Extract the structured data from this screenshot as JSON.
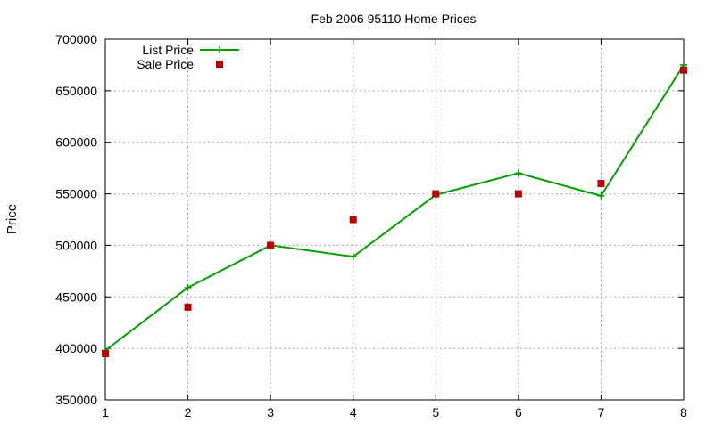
{
  "chart_data": {
    "type": "line",
    "title": "Feb 2006 95110 Home Prices",
    "xlabel": "",
    "ylabel": "Price",
    "xlim": [
      1,
      8
    ],
    "ylim": [
      350000,
      700000
    ],
    "x_ticks": [
      1,
      2,
      3,
      4,
      5,
      6,
      7,
      8
    ],
    "y_ticks": [
      350000,
      400000,
      450000,
      500000,
      550000,
      600000,
      650000,
      700000
    ],
    "grid": true,
    "legend_position": "top-left",
    "series": [
      {
        "name": "List Price",
        "style": "line-with-plus-markers",
        "color": "#00a000",
        "x": [
          1,
          2,
          3,
          4,
          5,
          6,
          7,
          8
        ],
        "y": [
          398000,
          459000,
          500000,
          489000,
          549000,
          570000,
          548000,
          675000
        ]
      },
      {
        "name": "Sale Price",
        "style": "square-markers",
        "color": "#c00000",
        "x": [
          1,
          2,
          3,
          4,
          5,
          6,
          7,
          8
        ],
        "y": [
          395000,
          440000,
          500000,
          525000,
          550000,
          550000,
          560000,
          670000
        ]
      }
    ]
  }
}
